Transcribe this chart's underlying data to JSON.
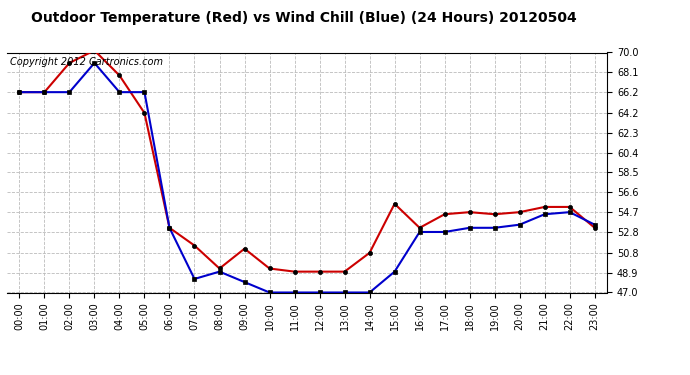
{
  "title": "Outdoor Temperature (Red) vs Wind Chill (Blue) (24 Hours) 20120504",
  "copyright_text": "Copyright 2012 Cartronics.com",
  "ylim": [
    47.0,
    70.0
  ],
  "yticks": [
    47.0,
    48.9,
    50.8,
    52.8,
    54.7,
    56.6,
    58.5,
    60.4,
    62.3,
    64.2,
    66.2,
    68.1,
    70.0
  ],
  "x_labels": [
    "00:00",
    "01:00",
    "02:00",
    "03:00",
    "04:00",
    "05:00",
    "06:00",
    "07:00",
    "08:00",
    "09:00",
    "10:00",
    "11:00",
    "12:00",
    "13:00",
    "14:00",
    "15:00",
    "16:00",
    "17:00",
    "18:00",
    "19:00",
    "20:00",
    "21:00",
    "22:00",
    "23:00"
  ],
  "red_temp": [
    66.2,
    66.2,
    69.0,
    70.2,
    67.8,
    64.2,
    53.2,
    51.5,
    49.3,
    51.2,
    49.3,
    49.0,
    49.0,
    49.0,
    50.8,
    55.5,
    53.2,
    54.5,
    54.7,
    54.5,
    54.7,
    55.2,
    55.2,
    53.2
  ],
  "blue_wc": [
    66.2,
    66.2,
    66.2,
    69.0,
    66.2,
    66.2,
    53.2,
    48.3,
    49.0,
    48.0,
    47.0,
    47.0,
    47.0,
    47.0,
    47.0,
    49.0,
    52.8,
    52.8,
    53.2,
    53.2,
    53.5,
    54.5,
    54.7,
    53.5
  ],
  "red_color": "#cc0000",
  "blue_color": "#0000cc",
  "bg_color": "#ffffff",
  "grid_color": "#bbbbbb",
  "title_fontsize": 10,
  "copyright_fontsize": 7,
  "marker_size": 3,
  "linewidth": 1.5
}
